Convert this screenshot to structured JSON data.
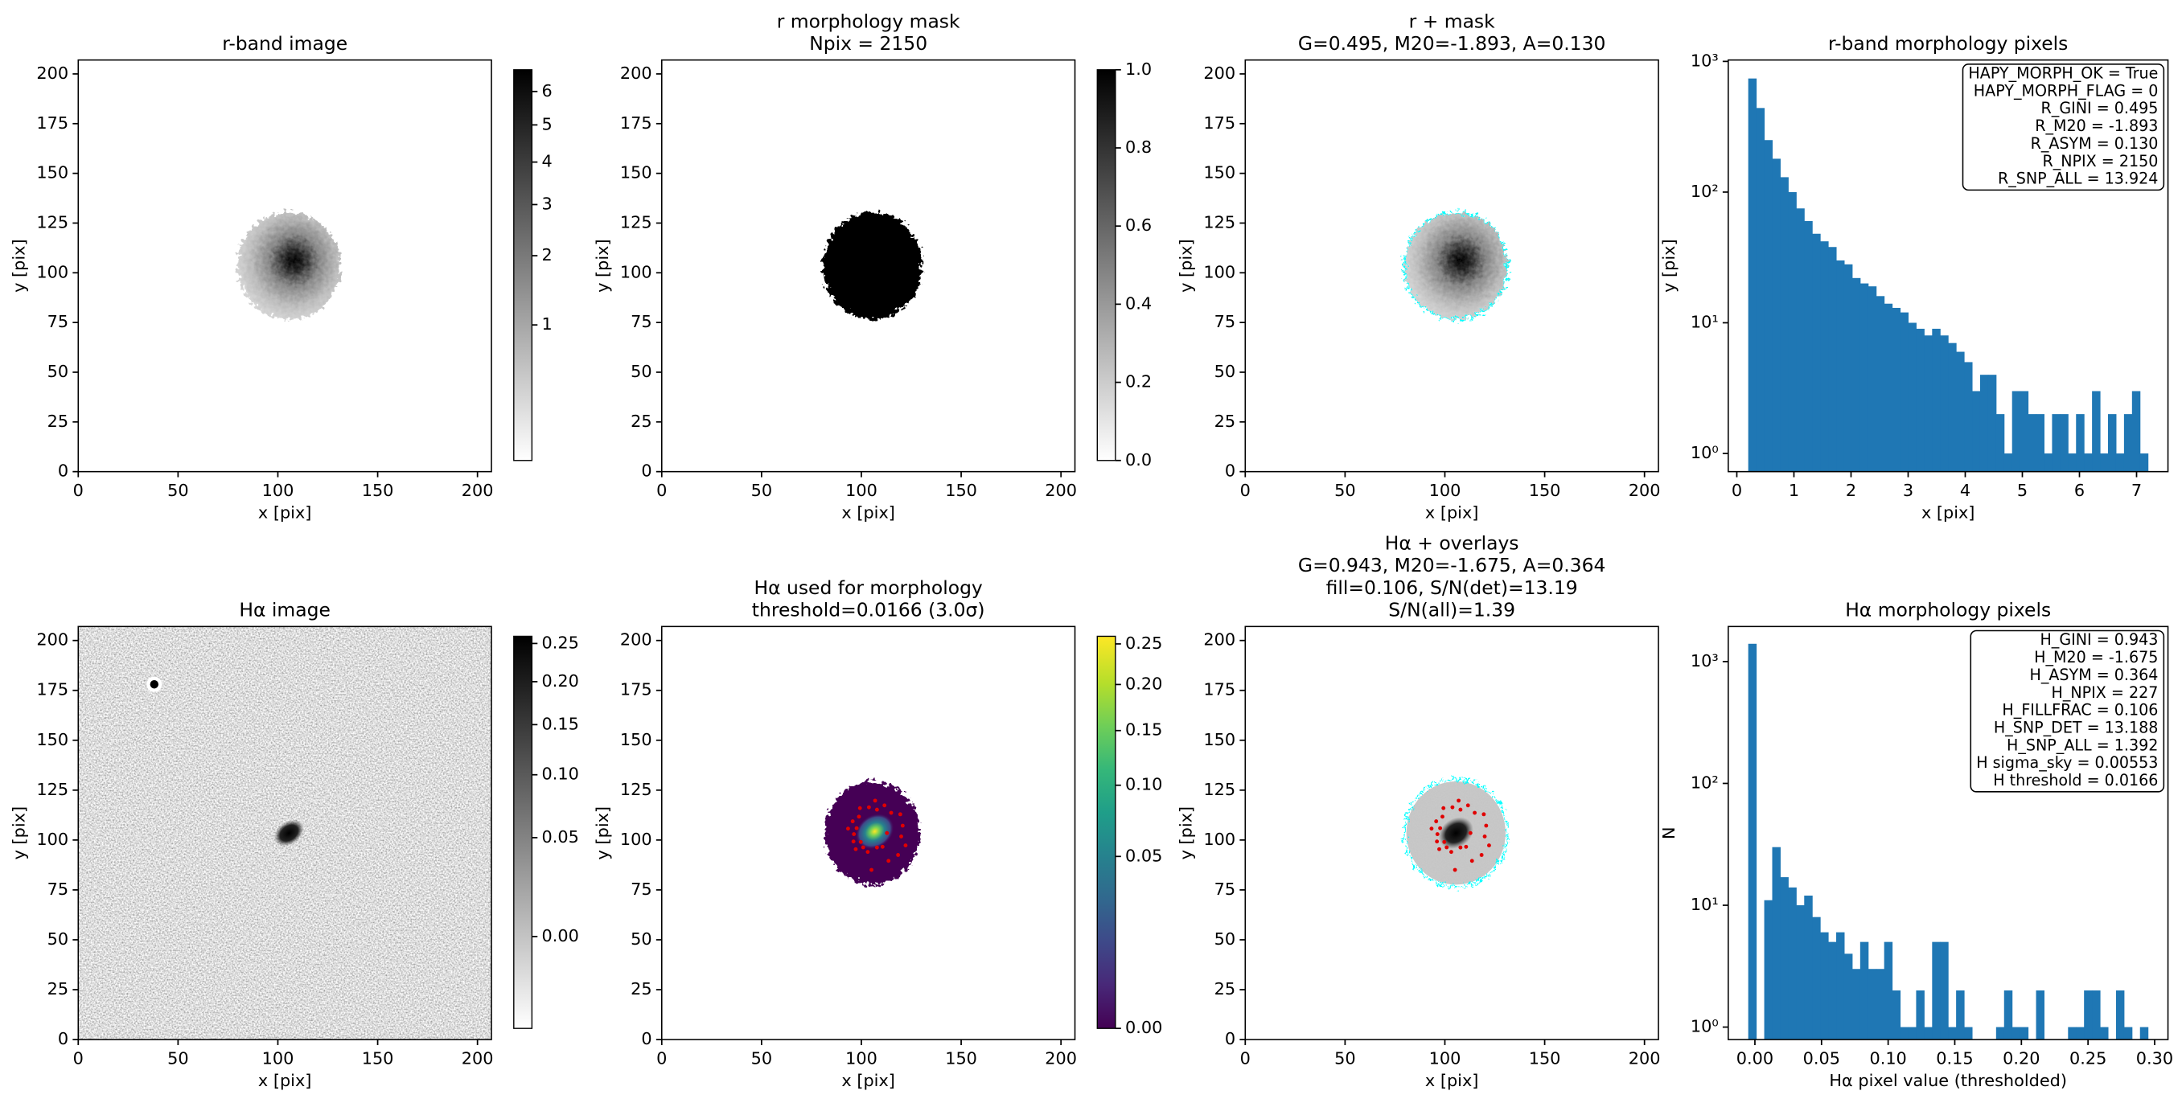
{
  "chart_data": [
    {
      "type": "image",
      "title": [
        "r-band image"
      ],
      "xlabel": "x [pix]",
      "ylabel": "y [pix]",
      "render": "r-band",
      "xlim": [
        0,
        207
      ],
      "ylim": [
        0,
        207
      ],
      "xticks": [
        0,
        50,
        100,
        150,
        200
      ],
      "yticks": [
        0,
        25,
        50,
        75,
        100,
        125,
        150,
        175,
        200
      ],
      "colorbar": {
        "cmap": "gray_r",
        "scale": "sqrt",
        "clim": [
          0.22,
          6.7
        ],
        "ticks": [
          1,
          2,
          3,
          4,
          5,
          6
        ]
      }
    },
    {
      "type": "image",
      "title": [
        "r morphology mask",
        "Npix = 2150"
      ],
      "xlabel": "x [pix]",
      "ylabel": "y [pix]",
      "render": "mask",
      "xlim": [
        0,
        207
      ],
      "ylim": [
        0,
        207
      ],
      "xticks": [
        0,
        50,
        100,
        150,
        200
      ],
      "yticks": [
        0,
        25,
        50,
        75,
        100,
        125,
        150,
        175,
        200
      ],
      "colorbar": {
        "cmap": "gray_r",
        "scale": "linear",
        "clim": [
          0,
          1
        ],
        "ticks": [
          {
            "value": 0,
            "label": "0.0"
          },
          {
            "value": 0.2,
            "label": "0.2"
          },
          {
            "value": 0.4,
            "label": "0.4"
          },
          {
            "value": 0.6,
            "label": "0.6"
          },
          {
            "value": 0.8,
            "label": "0.8"
          },
          {
            "value": 1,
            "label": "1.0"
          }
        ]
      }
    },
    {
      "type": "image",
      "title": [
        "r + mask",
        "G=0.495, M20=-1.893, A=0.130"
      ],
      "xlabel": "x [pix]",
      "ylabel": "y [pix]",
      "render": "r-mask",
      "xlim": [
        0,
        207
      ],
      "ylim": [
        0,
        207
      ],
      "xticks": [
        0,
        50,
        100,
        150,
        200
      ],
      "yticks": [
        0,
        25,
        50,
        75,
        100,
        125,
        150,
        175,
        200
      ]
    },
    {
      "type": "histogram",
      "title": [
        "r-band morphology pixels"
      ],
      "xlabel": "x [pix]",
      "ylabel": "y [pix]",
      "color": "#1f77b4",
      "log_y": true,
      "bins": [
        0.2,
        0.34,
        0.48,
        0.62,
        0.76,
        0.9,
        1.04,
        1.18,
        1.32,
        1.46,
        1.6,
        1.74,
        1.88,
        2.02,
        2.16,
        2.3,
        2.44,
        2.58,
        2.72,
        2.86,
        3.0,
        3.14,
        3.28,
        3.42,
        3.56,
        3.7,
        3.84,
        3.98,
        4.12,
        4.26,
        4.4,
        4.54,
        4.68,
        4.82,
        4.96,
        5.1,
        5.24,
        5.38,
        5.52,
        5.66,
        5.8,
        5.94,
        6.08,
        6.22,
        6.36,
        6.5,
        6.64,
        6.78,
        6.92,
        7.06,
        7.2
      ],
      "counts": [
        740,
        440,
        250,
        180,
        130,
        100,
        75,
        60,
        48,
        42,
        38,
        30,
        28,
        22,
        20,
        19,
        16,
        14,
        13,
        12,
        10,
        9,
        8,
        9,
        8,
        7,
        6,
        5,
        3,
        4,
        4,
        2,
        1,
        3,
        3,
        2,
        2,
        1,
        2,
        2,
        1,
        2,
        1,
        3,
        1,
        2,
        1,
        2,
        3,
        1
      ],
      "xlim": [
        -0.15,
        7.55
      ],
      "ylim": [
        0.726,
        1025
      ],
      "xticks": [
        0,
        1,
        2,
        3,
        4,
        5,
        6,
        7
      ],
      "yticks": [
        {
          "value": 1,
          "label": "10⁰"
        },
        {
          "value": 10,
          "label": "10¹"
        },
        {
          "value": 100,
          "label": "10²"
        },
        {
          "value": 1000,
          "label": "10³"
        }
      ],
      "annotation": [
        "HAPY_MORPH_OK = True",
        "HAPY_MORPH_FLAG = 0",
        "R_GINI = 0.495",
        "R_M20 = -1.893",
        "R_ASYM = 0.130",
        "R_NPIX = 2150",
        "R_SNP_ALL = 13.924"
      ]
    },
    {
      "type": "image",
      "title": [
        "Hα image"
      ],
      "xlabel": "x [pix]",
      "ylabel": "y [pix]",
      "render": "ha",
      "xlim": [
        0,
        207
      ],
      "ylim": [
        0,
        207
      ],
      "xticks": [
        0,
        50,
        100,
        150,
        200
      ],
      "yticks": [
        0,
        25,
        50,
        75,
        100,
        125,
        150,
        175,
        200
      ],
      "colorbar": {
        "cmap": "gray_r",
        "scale": "sqrt",
        "clim": [
          -0.0151,
          0.26
        ],
        "ticks": [
          {
            "value": 0,
            "label": "0.00"
          },
          {
            "value": 0.05,
            "label": "0.05"
          },
          {
            "value": 0.1,
            "label": "0.10"
          },
          {
            "value": 0.15,
            "label": "0.15"
          },
          {
            "value": 0.2,
            "label": "0.20"
          },
          {
            "value": 0.25,
            "label": "0.25"
          }
        ]
      }
    },
    {
      "type": "image",
      "title": [
        "Hα used for morphology",
        "threshold=0.0166 (3.0σ)"
      ],
      "xlabel": "x [pix]",
      "ylabel": "y [pix]",
      "render": "ha-used",
      "xlim": [
        0,
        207
      ],
      "ylim": [
        0,
        207
      ],
      "xticks": [
        0,
        50,
        100,
        150,
        200
      ],
      "yticks": [
        0,
        25,
        50,
        75,
        100,
        125,
        150,
        175,
        200
      ],
      "colorbar": {
        "cmap": "viridis",
        "scale": "sqrt",
        "clim": [
          0,
          0.26
        ],
        "ticks": [
          {
            "value": 0,
            "label": "0.00"
          },
          {
            "value": 0.05,
            "label": "0.05"
          },
          {
            "value": 0.1,
            "label": "0.10"
          },
          {
            "value": 0.15,
            "label": "0.15"
          },
          {
            "value": 0.2,
            "label": "0.20"
          },
          {
            "value": 0.25,
            "label": "0.25"
          }
        ]
      }
    },
    {
      "type": "image",
      "title": [
        "Hα + overlays",
        "G=0.943, M20=-1.675, A=0.364",
        "fill=0.106, S/N(det)=13.19",
        "S/N(all)=1.39"
      ],
      "xlabel": "x [pix]",
      "ylabel": "y [pix]",
      "render": "ha-overlay",
      "xlim": [
        0,
        207
      ],
      "ylim": [
        0,
        207
      ],
      "xticks": [
        0,
        50,
        100,
        150,
        200
      ],
      "yticks": [
        0,
        25,
        50,
        75,
        100,
        125,
        150,
        175,
        200
      ]
    },
    {
      "type": "histogram",
      "title": [
        "Hα morphology pixels"
      ],
      "xlabel": "Hα pixel value (thresholded)",
      "ylabel": "N",
      "color": "#1f77b4",
      "log_y": true,
      "bins": [
        -0.005,
        0.001,
        0.007,
        0.013,
        0.019,
        0.025,
        0.031,
        0.037,
        0.043,
        0.049,
        0.055,
        0.061,
        0.067,
        0.073,
        0.079,
        0.085,
        0.091,
        0.097,
        0.103,
        0.109,
        0.115,
        0.121,
        0.127,
        0.133,
        0.139,
        0.145,
        0.151,
        0.157,
        0.163,
        0.169,
        0.175,
        0.181,
        0.187,
        0.193,
        0.199,
        0.205,
        0.211,
        0.217,
        0.223,
        0.229,
        0.235,
        0.241,
        0.247,
        0.253,
        0.259,
        0.265,
        0.271,
        0.277,
        0.283,
        0.289,
        0.295
      ],
      "counts": [
        1400,
        0,
        11,
        30,
        17,
        14,
        10,
        12,
        8,
        6,
        5,
        6,
        4,
        3,
        5,
        3,
        3,
        5,
        2,
        1,
        1,
        2,
        1,
        5,
        5,
        1,
        2,
        1,
        0,
        0,
        0,
        1,
        2,
        1,
        1,
        0,
        2,
        0,
        0,
        0,
        1,
        1,
        2,
        2,
        1,
        0,
        2,
        1,
        0,
        1
      ],
      "xlim": [
        -0.02,
        0.31
      ],
      "ylim": [
        0.79,
        1940
      ],
      "xticks": [
        {
          "value": 0,
          "label": "0.00"
        },
        {
          "value": 0.05,
          "label": "0.05"
        },
        {
          "value": 0.1,
          "label": "0.10"
        },
        {
          "value": 0.15,
          "label": "0.15"
        },
        {
          "value": 0.2,
          "label": "0.20"
        },
        {
          "value": 0.25,
          "label": "0.25"
        },
        {
          "value": 0.3,
          "label": "0.30"
        }
      ],
      "yticks": [
        {
          "value": 1,
          "label": "10⁰"
        },
        {
          "value": 10,
          "label": "10¹"
        },
        {
          "value": 100,
          "label": "10²"
        },
        {
          "value": 1000,
          "label": "10³"
        }
      ],
      "annotation": [
        "H_GINI = 0.943",
        "H_M20 = -1.675",
        "H_ASYM = 0.364",
        "H_NPIX = 227",
        "H_FILLFRAC = 0.106",
        "H_SNP_DET = 13.188",
        "H_SNP_ALL = 1.392",
        "H sigma_sky = 0.00553",
        "H threshold = 0.0166"
      ]
    }
  ]
}
